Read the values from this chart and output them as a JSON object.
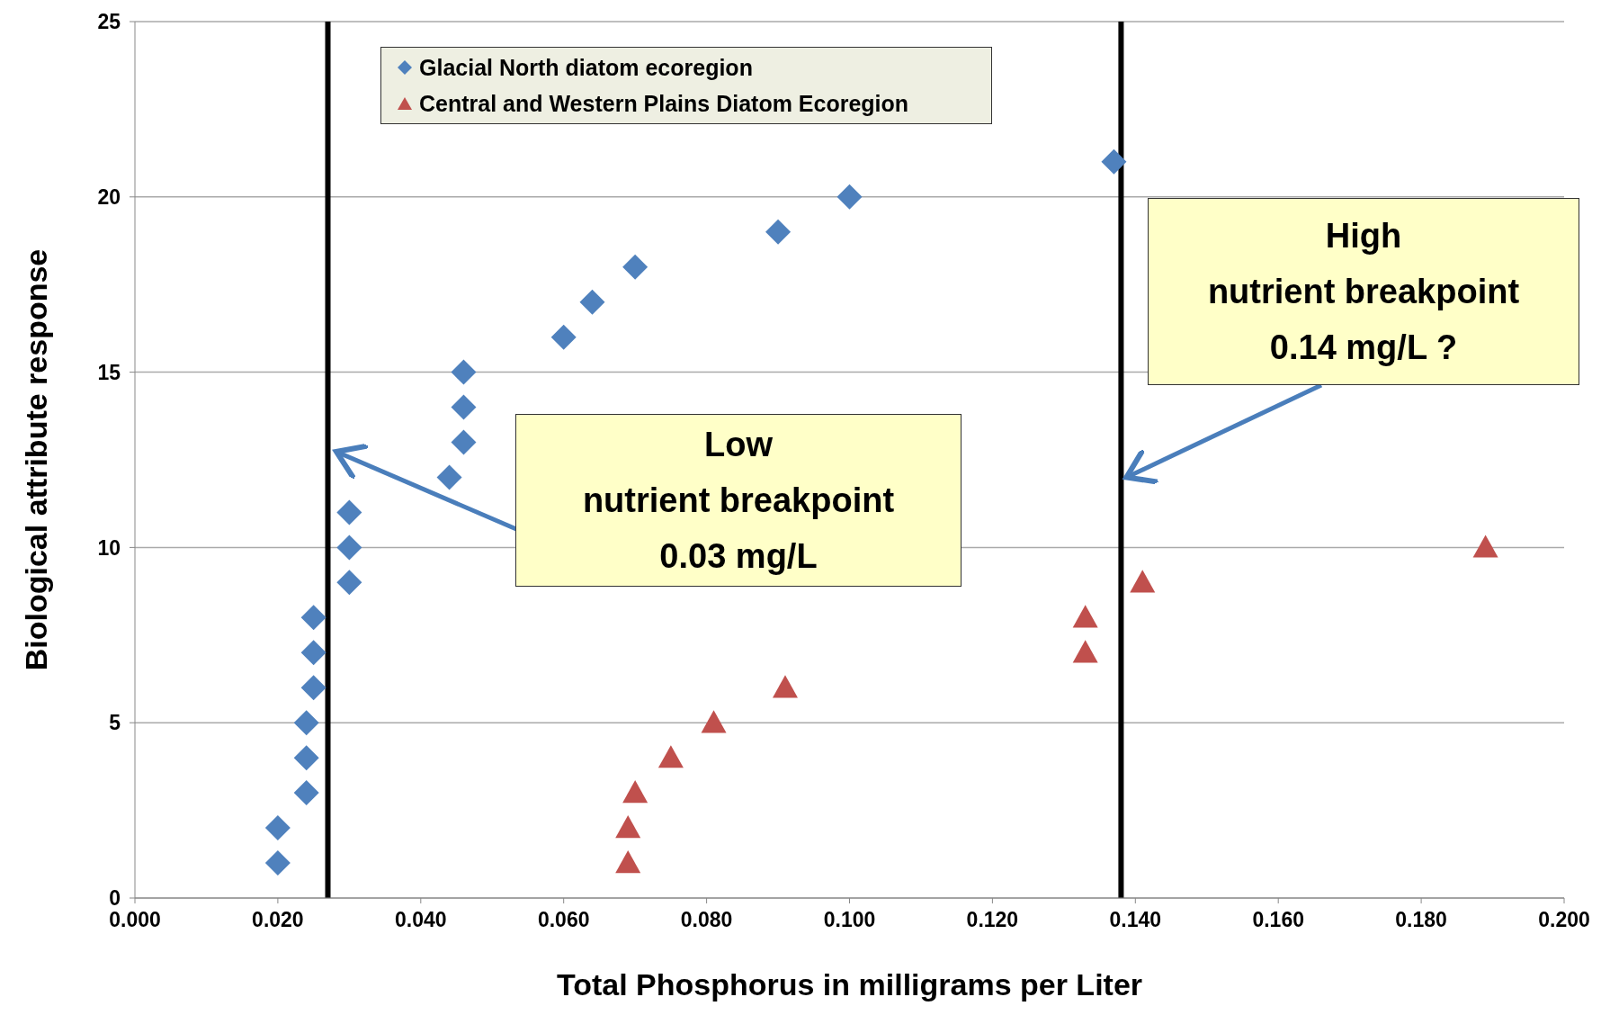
{
  "chart_data": {
    "type": "scatter",
    "xlabel": "Total Phosphorus in milligrams per Liter",
    "ylabel": "Biological attribute response",
    "xlim": [
      0,
      0.2
    ],
    "xticks": [
      {
        "value": 0,
        "label": "0.000"
      },
      {
        "value": 0.02,
        "label": "0.020"
      },
      {
        "value": 0.04,
        "label": "0.040"
      },
      {
        "value": 0.06,
        "label": "0.060"
      },
      {
        "value": 0.08,
        "label": "0.080"
      },
      {
        "value": 0.1,
        "label": "0.100"
      },
      {
        "value": 0.12,
        "label": "0.120"
      },
      {
        "value": 0.14,
        "label": "0.140"
      },
      {
        "value": 0.16,
        "label": "0.160"
      },
      {
        "value": 0.18,
        "label": "0.180"
      },
      {
        "value": 0.2,
        "label": "0.200"
      }
    ],
    "ylim": [
      0,
      25
    ],
    "yticks": [
      0,
      5,
      10,
      15,
      20,
      25
    ],
    "grid": "y",
    "legend": "top",
    "series": [
      {
        "name": "Glacial North diatom ecoregion",
        "color": "#4f81bd",
        "marker": "diamond",
        "x": [
          0.02,
          0.02,
          0.024,
          0.024,
          0.024,
          0.025,
          0.025,
          0.025,
          0.03,
          0.03,
          0.03,
          0.044,
          0.046,
          0.046,
          0.046,
          0.06,
          0.064,
          0.07,
          0.09,
          0.1,
          0.137
        ],
        "values": [
          1,
          2,
          3,
          4,
          5,
          6,
          7,
          8,
          9,
          10,
          11,
          12,
          13,
          14,
          15,
          16,
          17,
          18,
          19,
          20,
          21
        ]
      },
      {
        "name": "Central and Western Plains Diatom Ecoregion",
        "color": "#c0504d",
        "marker": "triangle",
        "x": [
          0.069,
          0.069,
          0.07,
          0.075,
          0.081,
          0.091,
          0.133,
          0.133,
          0.141,
          0.189
        ],
        "values": [
          1,
          2,
          3,
          4,
          5,
          6,
          7,
          8,
          9,
          10
        ]
      }
    ],
    "ref_lines": [
      {
        "axis": "x",
        "value": 0.027,
        "color": "#000000"
      },
      {
        "axis": "x",
        "value": 0.138,
        "color": "#000000"
      }
    ],
    "annotations": [
      "Low\nnutrient breakpoint\n0.03 mg/L",
      {
        "text": "High\nnutrient breakpoint\n0.14 mg/L ?",
        "x": 0.138,
        "y": 12
      }
    ]
  }
}
